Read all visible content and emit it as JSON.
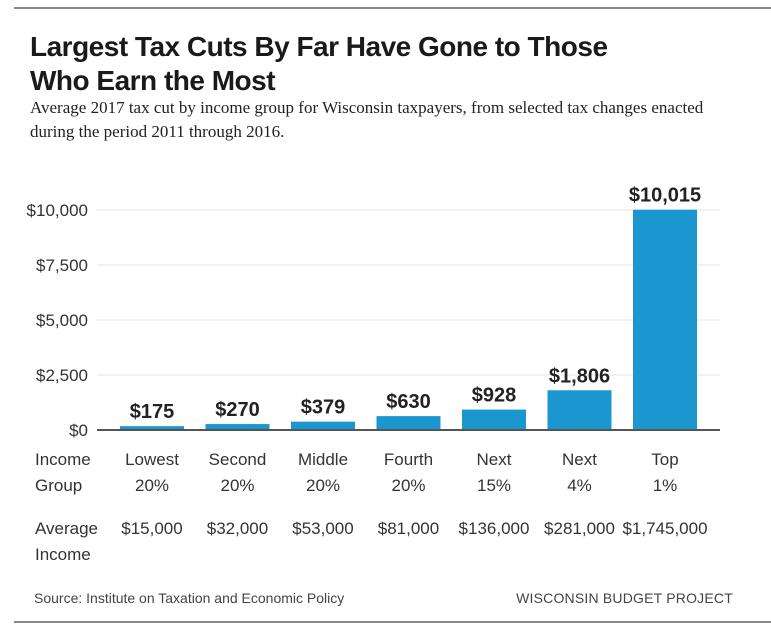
{
  "header": {
    "title": "Largest Tax Cuts By Far Have Gone to Those Who Earn the Most",
    "subtitle": "Average 2017 tax cut by income group for Wisconsin taxpayers, from selected tax changes enacted during the period 2011 through 2016."
  },
  "chart_data": {
    "type": "bar",
    "title": "Largest Tax Cuts By Far Have Gone to Those Who Earn the Most",
    "subtitle": "Average 2017 tax cut by income group for Wisconsin taxpayers, from selected tax changes enacted during the period 2011 through 2016.",
    "categories": [
      "Lowest 20%",
      "Second 20%",
      "Middle 20%",
      "Fourth 20%",
      "Next 15%",
      "Next 4%",
      "Top 1%"
    ],
    "category_lines": [
      [
        "Lowest",
        "20%"
      ],
      [
        "Second",
        "20%"
      ],
      [
        "Middle",
        "20%"
      ],
      [
        "Fourth",
        "20%"
      ],
      [
        "Next",
        "15%"
      ],
      [
        "Next",
        "4%"
      ],
      [
        "Top",
        "1%"
      ]
    ],
    "values": [
      175,
      270,
      379,
      630,
      928,
      1806,
      10015
    ],
    "data_labels": [
      "$175",
      "$270",
      "$379",
      "$630",
      "$928",
      "$1,806",
      "$10,015"
    ],
    "average_income": [
      "$15,000",
      "$32,000",
      "$53,000",
      "$81,000",
      "$136,000",
      "$281,000",
      "$1,745,000"
    ],
    "ylim": [
      0,
      10000
    ],
    "yticks": [
      0,
      2500,
      5000,
      7500,
      10000
    ],
    "ytick_labels": [
      "$0",
      "$2,500",
      "$5,000",
      "$7,500",
      "$10,000"
    ],
    "grid": true,
    "xlabel": "",
    "ylabel": "",
    "bar_color": "#1b97cf"
  },
  "table": {
    "income_group_label": [
      "Income",
      "Group"
    ],
    "average_income_label": [
      "Average",
      "Income"
    ]
  },
  "footer": {
    "source": "Source: Institute on Taxation and Economic Policy",
    "org": "WISCONSIN BUDGET PROJECT"
  }
}
